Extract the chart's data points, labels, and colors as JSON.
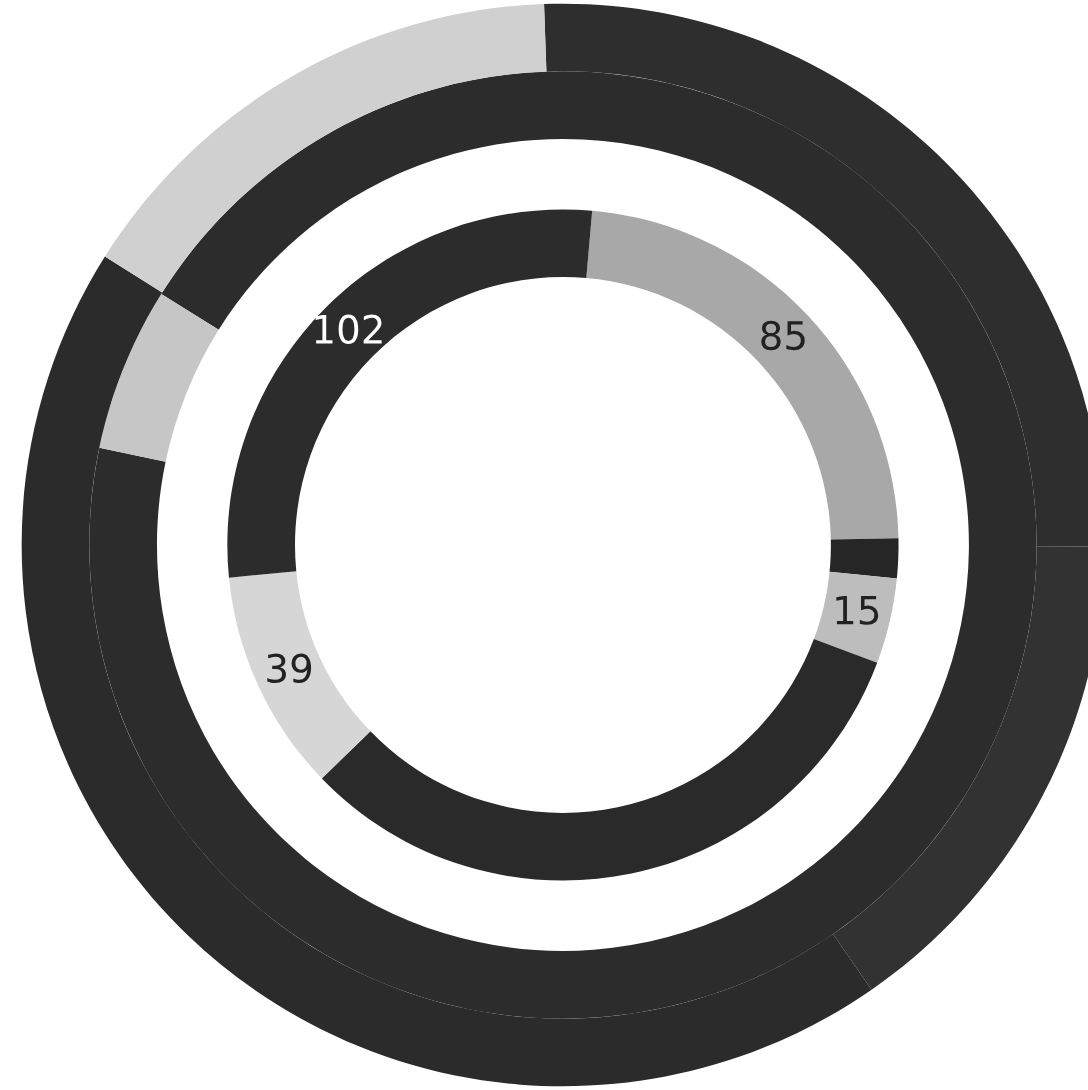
{
  "chart_data": {
    "type": "donut",
    "series": [
      {
        "values": [
          85,
          7,
          15,
          117,
          39,
          102
        ],
        "colors": [
          "#a8a8a8",
          "#262626",
          "#bdbdbd",
          "#2a2a2a",
          "#d6d6d6",
          "#2c2c2c"
        ],
        "value_labels": [
          "85",
          null,
          "15",
          null,
          "39",
          "102"
        ]
      },
      {
        "values": [
          94.4,
          5.6
        ],
        "colors": [
          "#2c2c2c",
          "#c6c6c6"
        ]
      },
      {
        "values": [
          25.6,
          15.3,
          43.6,
          15.5
        ],
        "colors": [
          "#2e2e2e",
          "#323232",
          "#2b2b2b",
          "#d0d0d0"
        ]
      }
    ]
  }
}
